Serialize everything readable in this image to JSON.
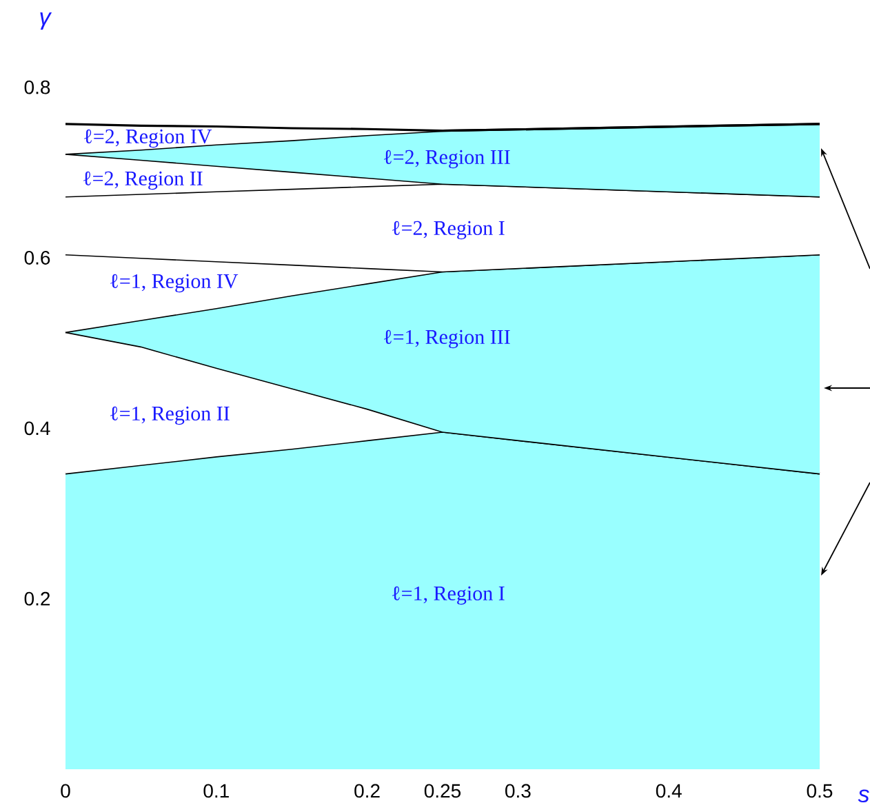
{
  "chart_data": {
    "type": "area",
    "stacked": true,
    "xlabel": "s",
    "ylabel": "γ",
    "xlim": [
      0,
      0.5
    ],
    "ylim": [
      0,
      0.8
    ],
    "xticks": [
      0,
      0.1,
      0.2,
      0.25,
      0.3,
      0.4,
      0.5
    ],
    "yticks": [
      0.2,
      0.4,
      0.6,
      0.8
    ],
    "grid": false,
    "marker": "none",
    "line_style": "solid",
    "x": [
      0,
      0.05,
      0.1,
      0.15,
      0.2,
      0.25,
      0.5
    ],
    "series": [
      {
        "name": "ℓ=1, Region I",
        "color": "#99ffff",
        "values": [
          0.347,
          0.357,
          0.367,
          0.376,
          0.386,
          0.396,
          0.347
        ]
      },
      {
        "name": "ℓ=1, Region II",
        "color": "#ffffff",
        "values": [
          0.166,
          0.139,
          0.104,
          0.071,
          0.037,
          0,
          0
        ]
      },
      {
        "name": "ℓ=1, Region III",
        "color": "#99ffff",
        "values": [
          0,
          0.031,
          0.07,
          0.109,
          0.147,
          0.188,
          0.257
        ]
      },
      {
        "name": "ℓ=1, Region IV",
        "color": "#ffffff",
        "values": [
          0.091,
          0.073,
          0.055,
          0.036,
          0.018,
          0,
          0
        ]
      },
      {
        "name": "ℓ=2, Region I",
        "color": "#ffffff",
        "values": [
          0.068,
          0.075,
          0.082,
          0.089,
          0.096,
          0.103,
          0.068
        ]
      },
      {
        "name": "ℓ=2, Region II",
        "color": "#ffffff",
        "values": [
          0.05,
          0.04,
          0.03,
          0.02,
          0.01,
          0,
          0
        ]
      },
      {
        "name": "ℓ=2, Region III",
        "color": "#99ffff",
        "values": [
          0,
          0.012,
          0.025,
          0.037,
          0.05,
          0.062,
          0.085
        ]
      },
      {
        "name": "ℓ=2, Region IV",
        "color": "#ffffff",
        "values": [
          0.035,
          0.028,
          0.021,
          0.014,
          0.007,
          0,
          0
        ]
      }
    ]
  }
}
